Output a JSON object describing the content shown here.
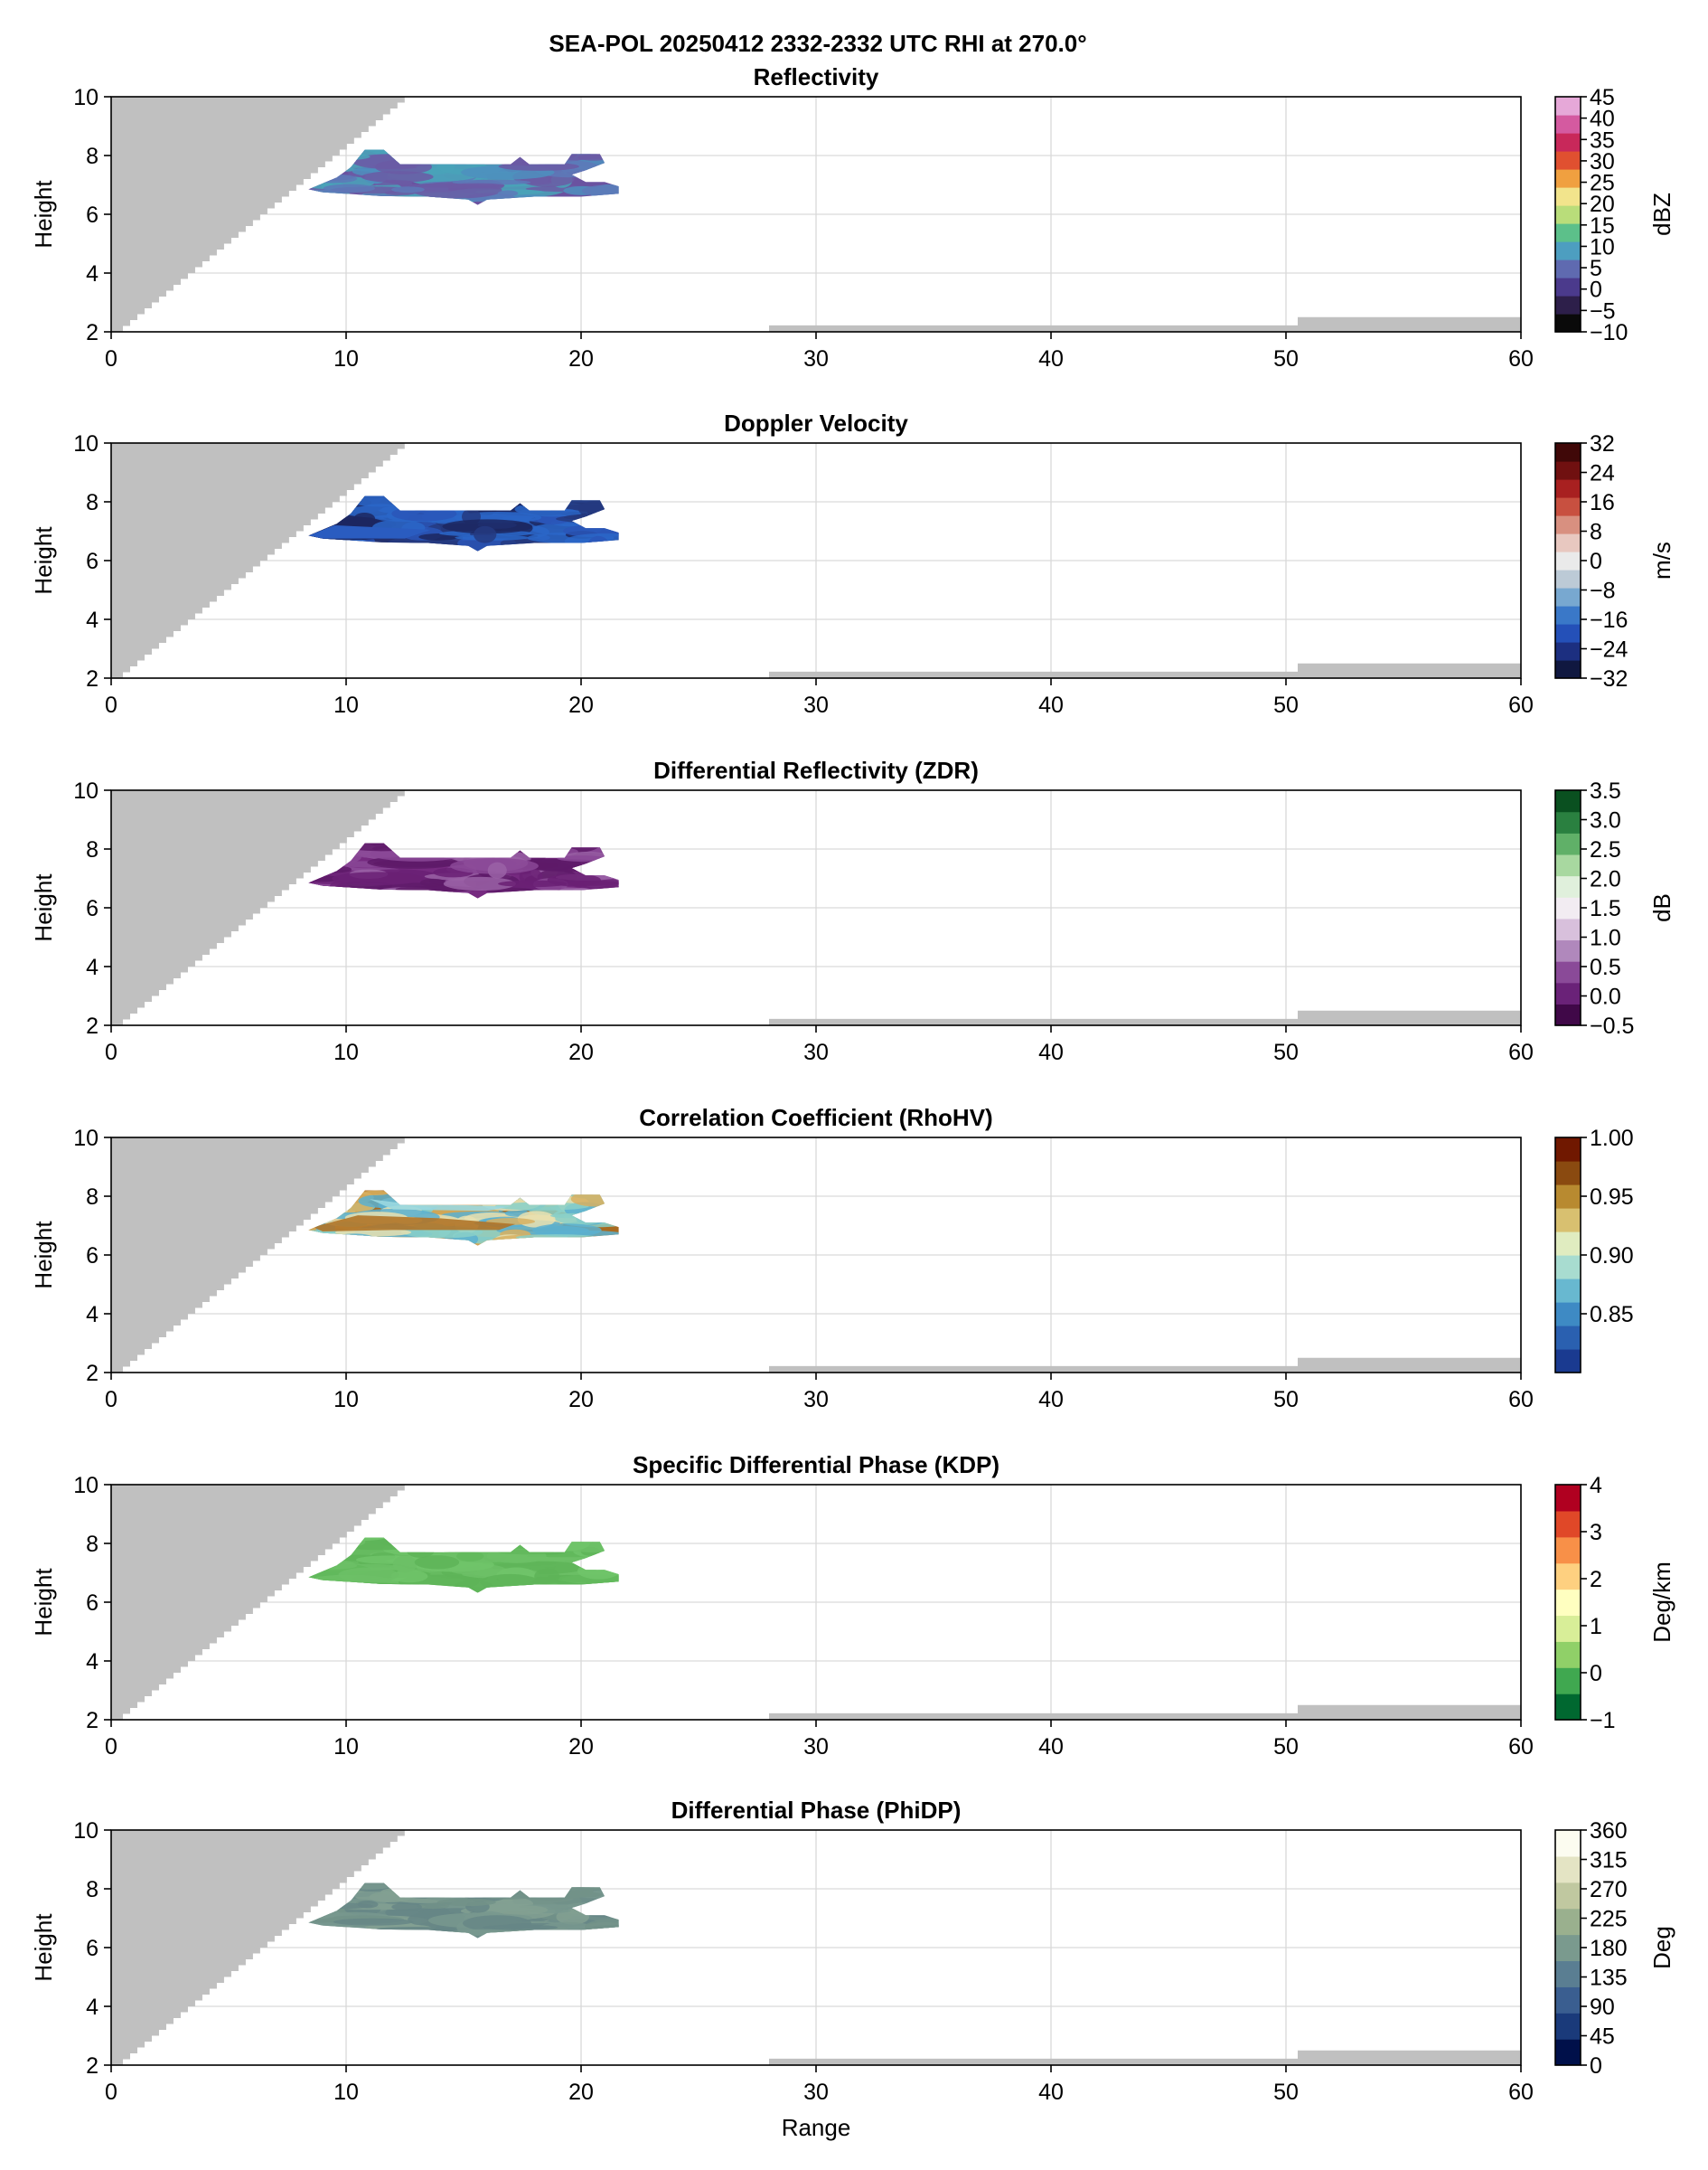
{
  "figure_title": "SEA-POL 20250412 2332-2332 UTC RHI at 270.0°",
  "colors": {
    "blocked": "#c0c0c0",
    "grid": "#d9d9d9",
    "frame": "#000000"
  },
  "chart_data": [
    {
      "type": "heatmap",
      "title": "Reflectivity",
      "xlabel": "",
      "ylabel": "Height",
      "xlim": [
        0,
        60
      ],
      "ylim": [
        2,
        10
      ],
      "xticks": [
        0,
        10,
        20,
        30,
        40,
        50,
        60
      ],
      "yticks": [
        2,
        4,
        6,
        8,
        10
      ],
      "grid": true,
      "colorbar": {
        "label": "dBZ",
        "range": [
          -10,
          45
        ],
        "ticks": [
          "−10",
          "−5",
          "0",
          "5",
          "10",
          "15",
          "20",
          "25",
          "30",
          "35",
          "40",
          "45"
        ],
        "tick_values": [
          -10,
          -5,
          0,
          5,
          10,
          15,
          20,
          25,
          30,
          35,
          40,
          45
        ],
        "colors": [
          "#0a0a0a",
          "#2d1f4a",
          "#4b3a8c",
          "#5f6ab0",
          "#4d9ec0",
          "#5cc08a",
          "#b9dd7a",
          "#f2e48c",
          "#f0a040",
          "#e05030",
          "#c8285a",
          "#d45aa0",
          "#e6a8d8"
        ]
      },
      "echo_region": {
        "range_km": [
          8.4,
          21.6
        ],
        "height_km": [
          6.3,
          8.2
        ]
      },
      "echo_colors": [
        "#6a52a0",
        "#5d79b8",
        "#49a3b8",
        "#6b5aa4",
        "#4e8fbe"
      ]
    },
    {
      "type": "heatmap",
      "title": "Doppler Velocity",
      "xlabel": "",
      "ylabel": "Height",
      "xlim": [
        0,
        60
      ],
      "ylim": [
        2,
        10
      ],
      "xticks": [
        0,
        10,
        20,
        30,
        40,
        50,
        60
      ],
      "yticks": [
        2,
        4,
        6,
        8,
        10
      ],
      "grid": true,
      "colorbar": {
        "label": "m/s",
        "range": [
          -32,
          32
        ],
        "ticks": [
          "−32",
          "−24",
          "−16",
          "−8",
          "0",
          "8",
          "16",
          "24",
          "32"
        ],
        "tick_values": [
          -32,
          -24,
          -16,
          -8,
          0,
          8,
          16,
          24,
          32
        ],
        "colors": [
          "#101840",
          "#1c2f80",
          "#2450b8",
          "#3a78c8",
          "#78a8d0",
          "#bccad6",
          "#eaeaea",
          "#e8c8c0",
          "#d89080",
          "#c85040",
          "#a82020",
          "#701010",
          "#400808"
        ]
      },
      "echo_region": {
        "range_km": [
          8.4,
          21.6
        ],
        "height_km": [
          6.3,
          8.2
        ]
      },
      "echo_colors": [
        "#22306e",
        "#243a80",
        "#2a56b8",
        "#1c2760",
        "#2a66c8"
      ]
    },
    {
      "type": "heatmap",
      "title": "Differential Reflectivity (ZDR)",
      "xlabel": "",
      "ylabel": "Height",
      "xlim": [
        0,
        60
      ],
      "ylim": [
        2,
        10
      ],
      "xticks": [
        0,
        10,
        20,
        30,
        40,
        50,
        60
      ],
      "yticks": [
        2,
        4,
        6,
        8,
        10
      ],
      "grid": true,
      "colorbar": {
        "label": "dB",
        "range": [
          -0.5,
          3.5
        ],
        "ticks": [
          "−0.5",
          "0.0",
          "0.5",
          "1.0",
          "1.5",
          "2.0",
          "2.5",
          "3.0",
          "3.5"
        ],
        "tick_values": [
          -0.5,
          0.0,
          0.5,
          1.0,
          1.5,
          2.0,
          2.5,
          3.0,
          3.5
        ],
        "colors": [
          "#400848",
          "#6a2278",
          "#8a4a98",
          "#b088bc",
          "#d8c0dc",
          "#f2ecf2",
          "#e0f0dc",
          "#a8d8a0",
          "#60b068",
          "#2a8040",
          "#0a5020"
        ]
      },
      "echo_region": {
        "range_km": [
          8.4,
          21.6
        ],
        "height_km": [
          6.3,
          8.2
        ]
      },
      "echo_colors": [
        "#762a80",
        "#6a2074",
        "#8a4896",
        "#5e1a68",
        "#9a62a6"
      ]
    },
    {
      "type": "heatmap",
      "title": "Correlation Coefficient (RhoHV)",
      "xlabel": "",
      "ylabel": "Height",
      "xlim": [
        0,
        60
      ],
      "ylim": [
        2,
        10
      ],
      "xticks": [
        0,
        10,
        20,
        30,
        40,
        50,
        60
      ],
      "yticks": [
        2,
        4,
        6,
        8,
        10
      ],
      "grid": true,
      "colorbar": {
        "label": "",
        "range": [
          0.8,
          1.0
        ],
        "ticks": [
          "0.85",
          "0.90",
          "0.95",
          "1.00"
        ],
        "tick_values": [
          0.85,
          0.9,
          0.95,
          1.0
        ],
        "colors": [
          "#1a3a90",
          "#2a60b0",
          "#3e8ac4",
          "#68b8d0",
          "#a8dcd0",
          "#e0ecc0",
          "#d8c070",
          "#b88a30",
          "#8a4a10",
          "#701800"
        ]
      },
      "echo_region": {
        "range_km": [
          8.4,
          21.6
        ],
        "height_km": [
          6.3,
          8.2
        ]
      },
      "echo_colors": [
        "#a86a20",
        "#d8b060",
        "#8ad0c8",
        "#e8e0b0",
        "#5ab0d0"
      ]
    },
    {
      "type": "heatmap",
      "title": "Specific Differential Phase (KDP)",
      "xlabel": "",
      "ylabel": "Height",
      "xlim": [
        0,
        60
      ],
      "ylim": [
        2,
        10
      ],
      "xticks": [
        0,
        10,
        20,
        30,
        40,
        50,
        60
      ],
      "yticks": [
        2,
        4,
        6,
        8,
        10
      ],
      "grid": true,
      "colorbar": {
        "label": "Deg/km",
        "range": [
          -1,
          4
        ],
        "ticks": [
          "−1",
          "0",
          "1",
          "2",
          "3",
          "4"
        ],
        "tick_values": [
          -1,
          0,
          1,
          2,
          3,
          4
        ],
        "colors": [
          "#006830",
          "#40a850",
          "#90d068",
          "#d8ee98",
          "#ffffc0",
          "#fed080",
          "#f89048",
          "#e04828",
          "#b00020"
        ]
      },
      "echo_region": {
        "range_km": [
          8.4,
          21.6
        ],
        "height_km": [
          6.3,
          8.2
        ]
      },
      "echo_colors": [
        "#66bb60",
        "#6cc066",
        "#5eb458",
        "#70c46a",
        "#62b85c"
      ]
    },
    {
      "type": "heatmap",
      "title": "Differential Phase (PhiDP)",
      "xlabel": "Range",
      "ylabel": "Height",
      "xlim": [
        0,
        60
      ],
      "ylim": [
        2,
        10
      ],
      "xticks": [
        0,
        10,
        20,
        30,
        40,
        50,
        60
      ],
      "yticks": [
        2,
        4,
        6,
        8,
        10
      ],
      "grid": true,
      "colorbar": {
        "label": "Deg",
        "range": [
          0,
          360
        ],
        "ticks": [
          "0",
          "45",
          "90",
          "135",
          "180",
          "225",
          "270",
          "315",
          "360"
        ],
        "tick_values": [
          0,
          45,
          90,
          135,
          180,
          225,
          270,
          315,
          360
        ],
        "colors": [
          "#00104a",
          "#1a3a7a",
          "#3a5e90",
          "#5a7e92",
          "#7a9a8e",
          "#9ab08e",
          "#c0c8a0",
          "#e4e4c4",
          "#fcfcf0"
        ]
      },
      "echo_region": {
        "range_km": [
          8.4,
          21.6
        ],
        "height_km": [
          6.3,
          8.2
        ]
      },
      "echo_colors": [
        "#6e8e8a",
        "#78988e",
        "#668686",
        "#82a092",
        "#729288"
      ]
    }
  ]
}
